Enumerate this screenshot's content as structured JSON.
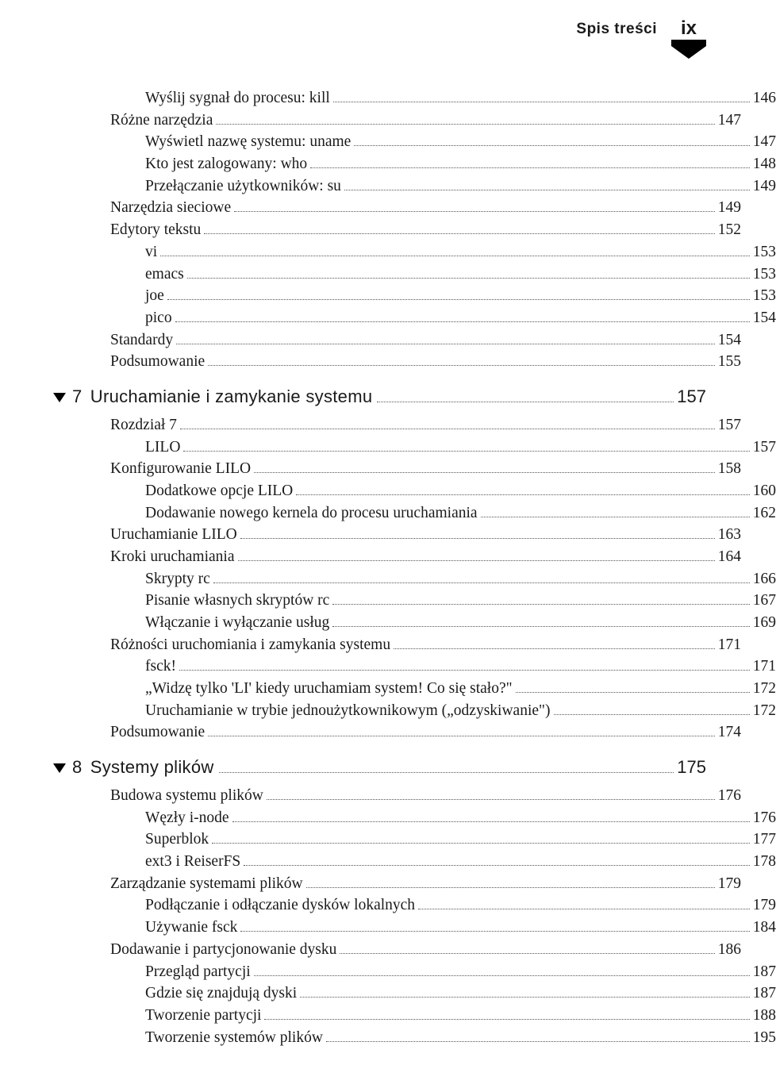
{
  "header": {
    "title": "Spis treści",
    "page_number": "ix"
  },
  "colors": {
    "text": "#1a1a1a",
    "dots": "#555555",
    "badge_fill": "#000000",
    "background": "#ffffff"
  },
  "typography": {
    "body_font": "Palatino",
    "body_size_pt": 14,
    "chapter_font": "Helvetica",
    "chapter_size_pt": 16,
    "header_title_size_pt": 14,
    "page_num_size_pt": 18
  },
  "pre": [
    {
      "indent": 2,
      "label": "Wyślij sygnał do procesu: kill",
      "page": "146"
    },
    {
      "indent": 1,
      "label": "Różne narzędzia",
      "page": "147"
    },
    {
      "indent": 2,
      "label": "Wyświetl nazwę systemu: uname",
      "page": "147"
    },
    {
      "indent": 2,
      "label": "Kto jest zalogowany: who",
      "page": "148"
    },
    {
      "indent": 2,
      "label": "Przełączanie użytkowników: su",
      "page": "149"
    },
    {
      "indent": 1,
      "label": "Narzędzia sieciowe",
      "page": "149"
    },
    {
      "indent": 1,
      "label": "Edytory tekstu",
      "page": "152"
    },
    {
      "indent": 2,
      "label": "vi",
      "page": "153"
    },
    {
      "indent": 2,
      "label": "emacs",
      "page": "153"
    },
    {
      "indent": 2,
      "label": "joe",
      "page": "153"
    },
    {
      "indent": 2,
      "label": "pico",
      "page": "154"
    },
    {
      "indent": 1,
      "label": "Standardy",
      "page": "154"
    },
    {
      "indent": 1,
      "label": "Podsumowanie",
      "page": "155"
    }
  ],
  "chapters": [
    {
      "num": "7",
      "title": "Uruchamianie i zamykanie systemu",
      "page": "157",
      "items": [
        {
          "indent": 1,
          "label": "Rozdział 7",
          "page": "157"
        },
        {
          "indent": 2,
          "label": "LILO",
          "page": "157"
        },
        {
          "indent": 1,
          "label": "Konfigurowanie LILO",
          "page": "158"
        },
        {
          "indent": 2,
          "label": "Dodatkowe opcje LILO",
          "page": "160"
        },
        {
          "indent": 2,
          "label": "Dodawanie nowego kernela do procesu uruchamiania",
          "page": "162"
        },
        {
          "indent": 1,
          "label": "Uruchamianie LILO",
          "page": "163"
        },
        {
          "indent": 1,
          "label": "Kroki uruchamiania",
          "page": "164"
        },
        {
          "indent": 2,
          "label": "Skrypty rc",
          "page": "166"
        },
        {
          "indent": 2,
          "label": "Pisanie własnych skryptów rc",
          "page": "167"
        },
        {
          "indent": 2,
          "label": "Włączanie i wyłączanie usług",
          "page": "169"
        },
        {
          "indent": 1,
          "label": "Różności uruchomiania i zamykania systemu",
          "page": "171"
        },
        {
          "indent": 2,
          "label": "fsck!",
          "page": "171"
        },
        {
          "indent": 2,
          "label": "„Widzę tylko 'LI' kiedy uruchamiam system! Co się stało?\"",
          "page": "172"
        },
        {
          "indent": 2,
          "label": "Uruchamianie w trybie jednoużytkownikowym („odzyskiwanie\")",
          "page": "172"
        },
        {
          "indent": 1,
          "label": "Podsumowanie",
          "page": "174"
        }
      ]
    },
    {
      "num": "8",
      "title": "Systemy plików",
      "page": "175",
      "items": [
        {
          "indent": 1,
          "label": "Budowa systemu plików",
          "page": "176"
        },
        {
          "indent": 2,
          "label": "Węzły i-node",
          "page": "176"
        },
        {
          "indent": 2,
          "label": "Superblok",
          "page": "177"
        },
        {
          "indent": 2,
          "label": "ext3 i ReiserFS",
          "page": "178"
        },
        {
          "indent": 1,
          "label": "Zarządzanie systemami plików",
          "page": "179"
        },
        {
          "indent": 2,
          "label": "Podłączanie i odłączanie dysków lokalnych",
          "page": "179"
        },
        {
          "indent": 2,
          "label": "Używanie fsck",
          "page": "184"
        },
        {
          "indent": 1,
          "label": "Dodawanie i partycjonowanie dysku",
          "page": "186"
        },
        {
          "indent": 2,
          "label": "Przegląd partycji",
          "page": "187"
        },
        {
          "indent": 2,
          "label": "Gdzie się znajdują dyski",
          "page": "187"
        },
        {
          "indent": 2,
          "label": "Tworzenie partycji",
          "page": "188"
        },
        {
          "indent": 2,
          "label": "Tworzenie systemów plików",
          "page": "195"
        }
      ]
    }
  ]
}
